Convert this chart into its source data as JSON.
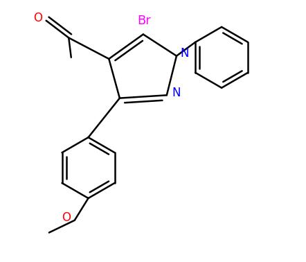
{
  "background": "#ffffff",
  "bond_color": "#000000",
  "N_color": "#0000ff",
  "O_color": "#ff0000",
  "Br_color": "#ff00ff",
  "line_width": 1.8,
  "figsize": [
    4.42,
    3.78
  ],
  "dpi": 100,
  "xlim": [
    0.5,
    5.5
  ],
  "ylim": [
    -3.8,
    1.5
  ]
}
